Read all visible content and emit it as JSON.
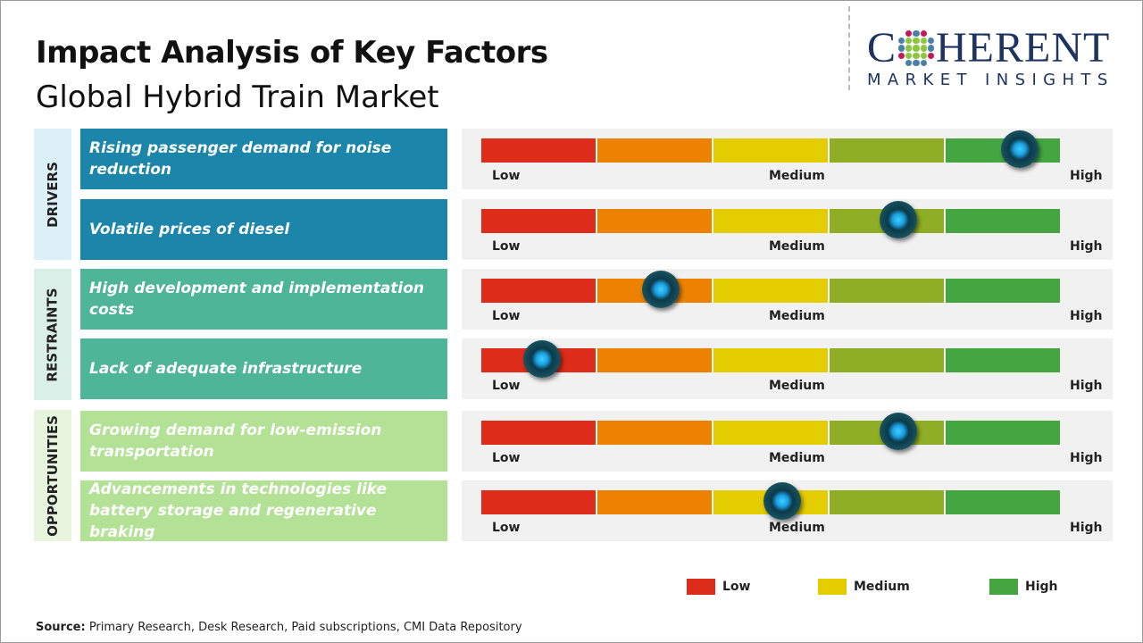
{
  "title": "Impact Analysis of Key Factors",
  "subtitle": "Global Hybrid Train Market",
  "logo": {
    "top": "COHERENT",
    "bottom": "MARKET INSIGHTS"
  },
  "scale_labels": {
    "low": "Low",
    "medium": "Medium",
    "high": "High"
  },
  "scale_colors": [
    "#dd2c1a",
    "#ec8200",
    "#e3cc00",
    "#90ae25",
    "#45a641"
  ],
  "categories": [
    {
      "label": "DRIVERS",
      "color": "#1b86aa",
      "bg": "#dcf0f7"
    },
    {
      "label": "RESTRAINTS",
      "color": "#4fb598",
      "bg": "#d9efe8"
    },
    {
      "label": "OPPORTUNITIES",
      "color": "#b3e297",
      "bg": "#e7f5de"
    }
  ],
  "factors": [
    {
      "category": 0,
      "text": "Rising passenger demand for noise reduction",
      "impact": 0.93
    },
    {
      "category": 0,
      "text": "Volatile prices of diesel",
      "impact": 0.72
    },
    {
      "category": 1,
      "text": "High development and implementation costs",
      "impact": 0.31
    },
    {
      "category": 1,
      "text": "Lack of adequate infrastructure",
      "impact": 0.105
    },
    {
      "category": 2,
      "text": "Growing demand for low-emission transportation",
      "impact": 0.72
    },
    {
      "category": 2,
      "text": "Advancements in technologies like battery storage and regenerative braking",
      "impact": 0.52
    }
  ],
  "legend": [
    {
      "label": "Low",
      "color": "#dd2c1a"
    },
    {
      "label": "Medium",
      "color": "#e3cc00"
    },
    {
      "label": "High",
      "color": "#45a641"
    }
  ],
  "source": {
    "label": "Source:",
    "text": " Primary Research, Desk Research, Paid subscriptions, CMI Data Repository"
  }
}
